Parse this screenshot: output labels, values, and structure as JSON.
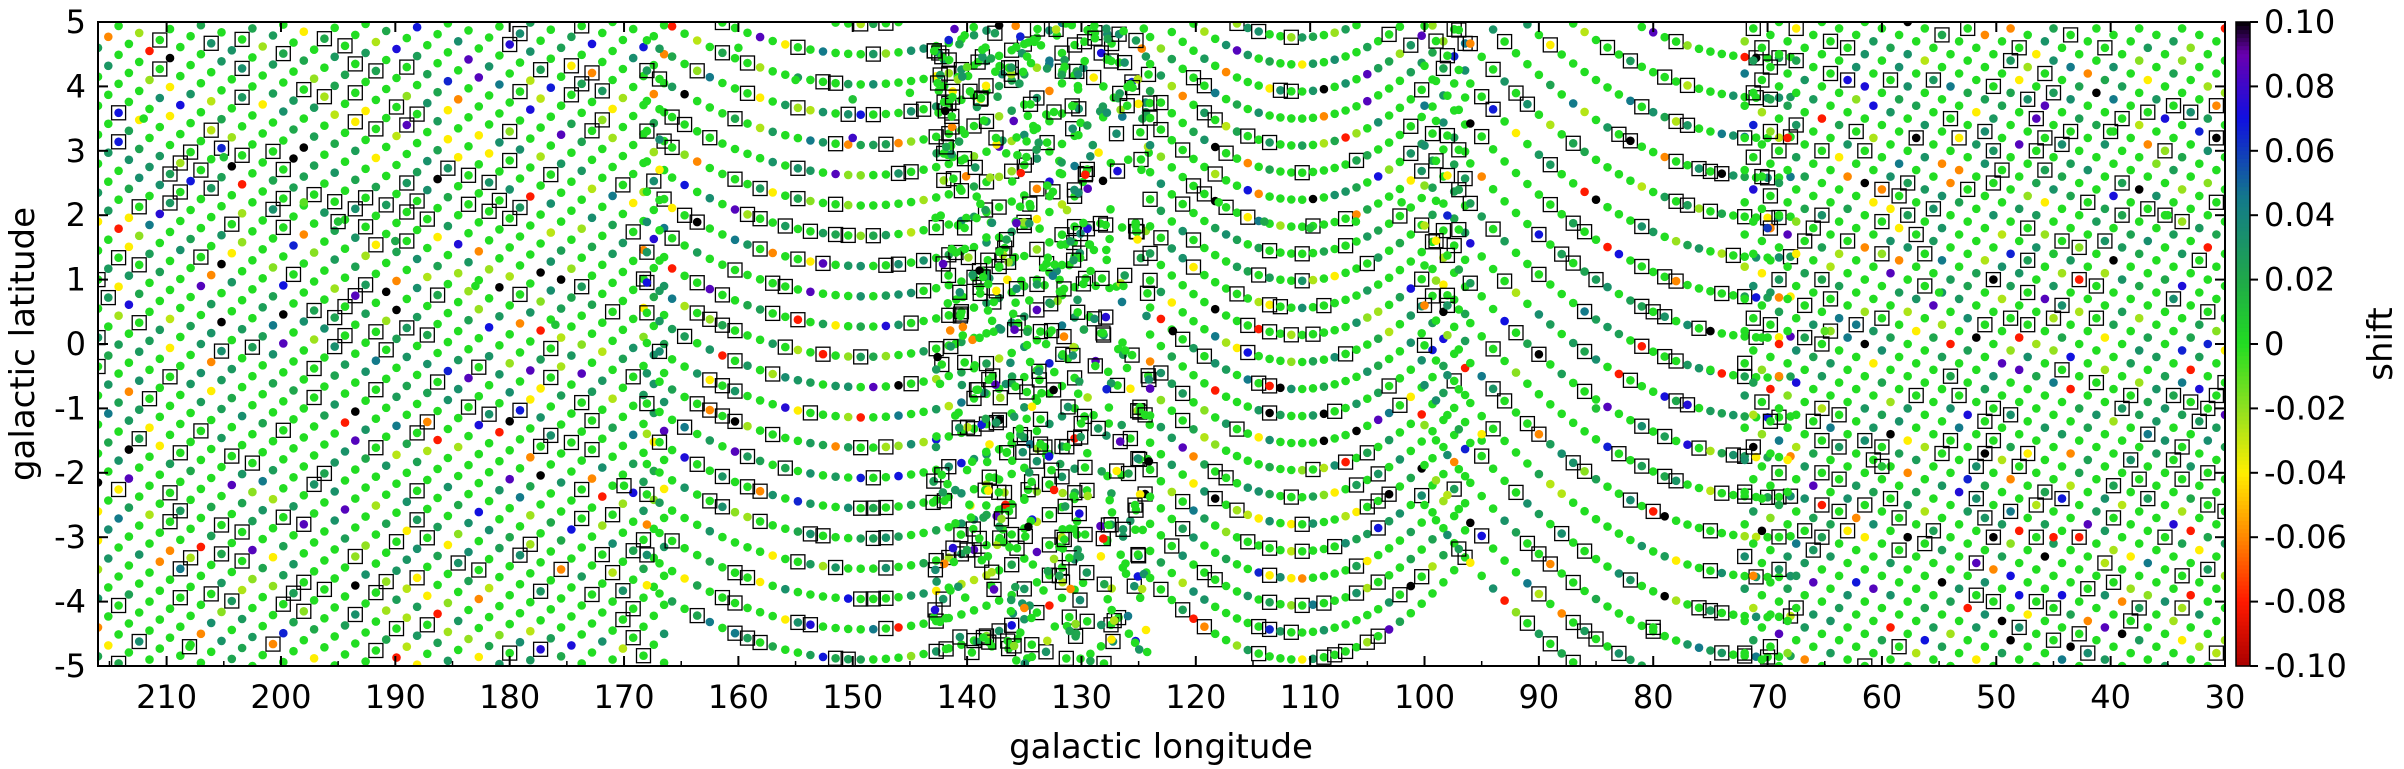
{
  "chart_data": {
    "type": "scatter",
    "title": "",
    "xlabel": "galactic longitude",
    "ylabel": "galactic latitude",
    "xlim": [
      216,
      30
    ],
    "ylim": [
      -5,
      5
    ],
    "x_reversed": true,
    "xticks": [
      210,
      200,
      190,
      180,
      170,
      160,
      150,
      140,
      130,
      120,
      110,
      100,
      90,
      80,
      70,
      60,
      50,
      40,
      30
    ],
    "yticks": [
      5,
      4,
      3,
      2,
      1,
      0,
      -1,
      -2,
      -3,
      -4,
      -5
    ],
    "grid": false,
    "legend": "none",
    "marker_shapes": {
      "all_pointings": "filled circle",
      "flagged_pointings": "open black square around circle"
    },
    "colorbar": {
      "label": "shift",
      "position": "right",
      "min": -0.1,
      "max": 0.1,
      "ticks": [
        0.1,
        0.08,
        0.06,
        0.04,
        0.02,
        0,
        -0.02,
        -0.04,
        -0.06,
        -0.08,
        -0.1
      ],
      "tick_labels": [
        "0.10",
        "0.08",
        "0.06",
        "0.04",
        "0.02",
        "0",
        "-0.02",
        "-0.04",
        "-0.06",
        "-0.08",
        "-0.10"
      ],
      "colormap": [
        {
          "value": 0.1,
          "color": "#000000"
        },
        {
          "value": 0.09,
          "color": "#6a00b0"
        },
        {
          "value": 0.07,
          "color": "#1010e0"
        },
        {
          "value": 0.045,
          "color": "#137a8a"
        },
        {
          "value": 0.02,
          "color": "#1fa84a"
        },
        {
          "value": 0.0,
          "color": "#22dd22"
        },
        {
          "value": -0.02,
          "color": "#8fe020"
        },
        {
          "value": -0.04,
          "color": "#ffee00"
        },
        {
          "value": -0.06,
          "color": "#ff8800"
        },
        {
          "value": -0.08,
          "color": "#ff1a00"
        },
        {
          "value": -0.1,
          "color": "#aa0000"
        }
      ]
    },
    "point_summary": {
      "dominant_value": 0.0,
      "pattern": "dense grid of pointing tracks; tracks slant diagonally in 30-100 and 170-216, curve into arcs around l=150 and l=110",
      "outlier_values": [
        0.1,
        0.08,
        0.06,
        -0.04,
        -0.06,
        -0.08,
        -0.1
      ]
    },
    "series": [
      {
        "marker": "circle",
        "x": [
          212,
          205,
          198,
          190,
          183,
          176
        ],
        "y": [
          3.5,
          2.9,
          2.2,
          1.6,
          0.9,
          0.3
        ],
        "values": [
          0.0,
          0.01,
          -0.01,
          0.02,
          0.0,
          0.01
        ]
      },
      {
        "marker": "circle",
        "x": [
          160,
          155,
          150,
          145,
          140
        ],
        "y": [
          4.6,
          4.1,
          3.8,
          3.9,
          4.3
        ],
        "values": [
          0.0,
          0.0,
          0.01,
          0.0,
          -0.01
        ]
      },
      {
        "marker": "circle",
        "x": [
          118,
          114,
          110,
          106,
          102
        ],
        "y": [
          2.2,
          1.9,
          1.8,
          1.9,
          2.2
        ],
        "values": [
          0.0,
          0.02,
          0.01,
          0.0,
          0.0
        ]
      },
      {
        "marker": "circle",
        "x": [
          95,
          85,
          75,
          65,
          55,
          45,
          35
        ],
        "y": [
          -1.5,
          -1.0,
          -0.4,
          0.2,
          0.8,
          1.4,
          2.0
        ],
        "values": [
          0.0,
          0.01,
          0.0,
          -0.01,
          0.0,
          0.01,
          0.0
        ]
      },
      {
        "marker": "square",
        "x": [
          208,
          195,
          170,
          140,
          126,
          98,
          80,
          60,
          40
        ],
        "y": [
          -4.7,
          1.9,
          -2.2,
          -3.2,
          3.7,
          0.6,
          -4.4,
          -1.9,
          3.3
        ],
        "values": [
          0.0,
          0.01,
          0.0,
          0.02,
          0.0,
          0.03,
          0.0,
          0.01,
          0.0
        ]
      },
      {
        "marker": "circle",
        "x": [
          150,
          135,
          122,
          95,
          70,
          45
        ],
        "y": [
          3.2,
          -4.1,
          0.2,
          -1.4,
          1.8,
          -3.0
        ],
        "values": [
          0.08,
          -0.06,
          0.1,
          -0.04,
          0.06,
          -0.08
        ]
      }
    ]
  }
}
